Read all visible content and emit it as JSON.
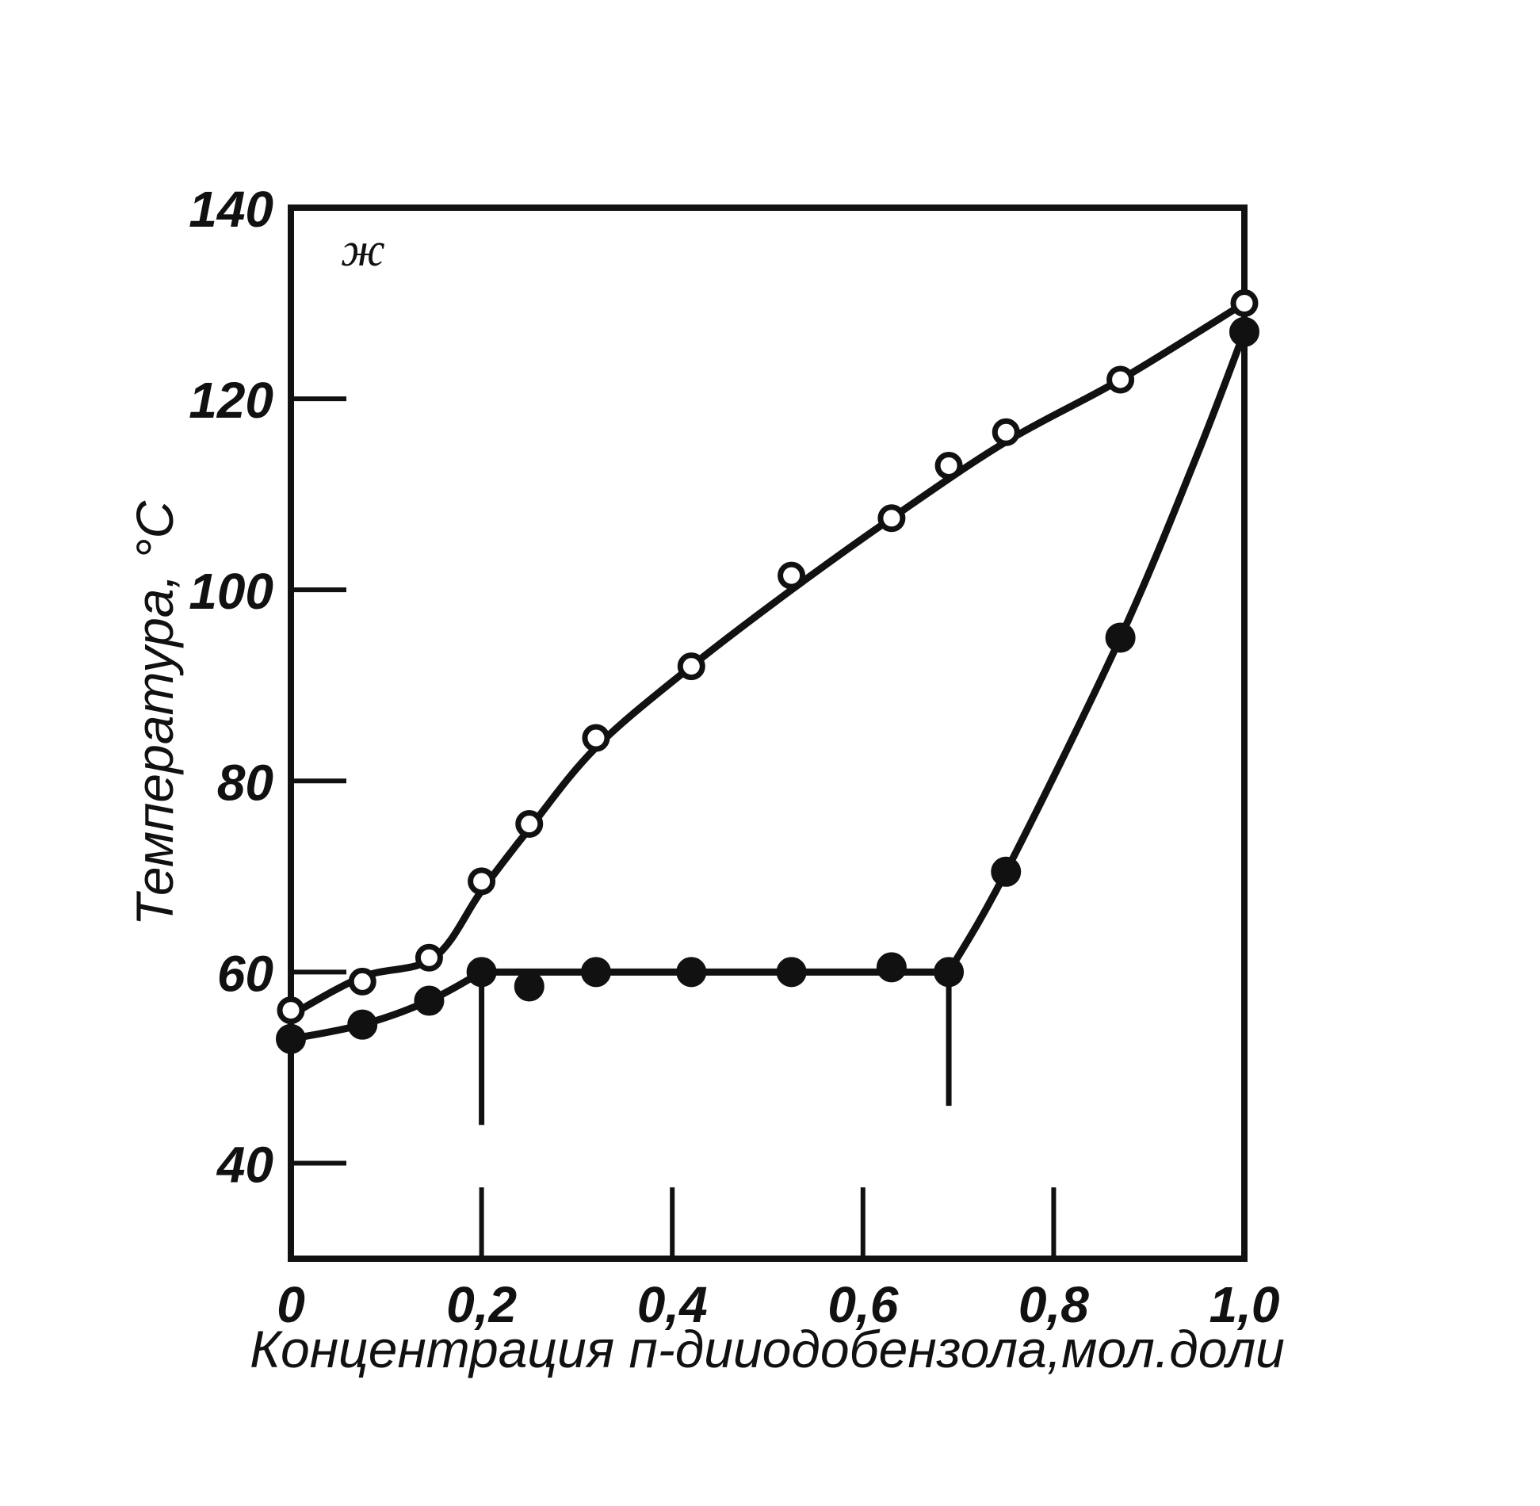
{
  "chart_data": {
    "type": "scatter",
    "title": "",
    "xlabel": "Концентрация п-дииодобензола,мол.доли",
    "ylabel": "Температура, °С",
    "xlim": [
      0,
      1.0
    ],
    "ylim": [
      30,
      140
    ],
    "x_ticks": [
      0,
      0.2,
      0.4,
      0.6,
      0.8,
      1.0
    ],
    "x_tick_labels": [
      "0",
      "0,2",
      "0,4",
      "0,6",
      "0,8",
      "1,0"
    ],
    "y_ticks": [
      40,
      60,
      80,
      100,
      120,
      140
    ],
    "y_tick_labels": [
      "40",
      "60",
      "80",
      "100",
      "120",
      "140"
    ],
    "region_label": "ж",
    "grid": false,
    "series": [
      {
        "marker": "open-circle",
        "x": [
          0,
          0.075,
          0.145,
          0.2,
          0.25,
          0.32,
          0.42,
          0.525,
          0.63,
          0.69,
          0.75,
          0.87,
          1.0
        ],
        "y": [
          56,
          59,
          61.5,
          69.5,
          75.5,
          84.5,
          92,
          101.5,
          107.5,
          113,
          116.5,
          122,
          130
        ],
        "curve_x": [
          0,
          0.075,
          0.15,
          0.2,
          0.25,
          0.32,
          0.42,
          0.525,
          0.63,
          0.75,
          0.87,
          1.0
        ],
        "curve_y": [
          55.5,
          59.5,
          61.5,
          68.5,
          75,
          83.5,
          92,
          100,
          107.5,
          115.5,
          122,
          130
        ]
      },
      {
        "marker": "filled-circle",
        "x": [
          0,
          0.075,
          0.145,
          0.2,
          0.25,
          0.32,
          0.42,
          0.525,
          0.63,
          0.69,
          0.75,
          0.87,
          1.0
        ],
        "y": [
          53,
          54.5,
          57,
          60,
          58.5,
          60,
          60,
          60,
          60.5,
          60,
          70.5,
          95,
          127
        ],
        "curve_x": [
          0,
          0.075,
          0.145,
          0.2
        ],
        "curve_y": [
          53,
          54.5,
          57,
          60
        ],
        "plateau_x": [
          0.2,
          0.69
        ],
        "plateau_y": 60,
        "upper_x": [
          0.69,
          0.75,
          0.87,
          0.95,
          1.0
        ],
        "upper_y": [
          60,
          70.5,
          95,
          114,
          127
        ]
      }
    ],
    "vertical_markers": [
      {
        "x": 0.2,
        "y_from": 60,
        "y_to": 44
      },
      {
        "x": 0.69,
        "y_from": 60,
        "y_to": 46
      }
    ]
  }
}
